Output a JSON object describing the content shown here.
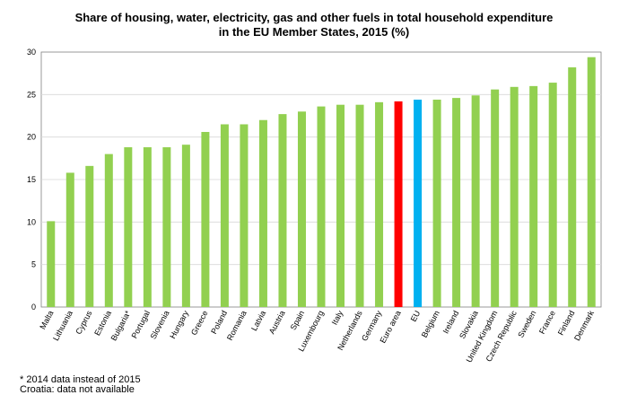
{
  "chart_data": {
    "type": "bar",
    "title_lines": [
      "Share of housing, water, electricity, gas and other fuels in total household expenditure",
      "in the EU Member States, 2015 (%)"
    ],
    "xlabel": "",
    "ylabel": "",
    "ylim": [
      0,
      30
    ],
    "yticks": [
      0,
      5,
      10,
      15,
      20,
      25,
      30
    ],
    "grid": true,
    "legend": "none",
    "categories": [
      "Malta",
      "Lithuania",
      "Cyprus",
      "Estonia",
      "Bulgaria*",
      "Portugal",
      "Slovenia",
      "Hungary",
      "Greece",
      "Poland",
      "Romania",
      "Latvia",
      "Austria",
      "Spain",
      "Luxembourg",
      "Italy",
      "Netherlands",
      "Germany",
      "Euro area",
      "EU",
      "Belgium",
      "Ireland",
      "Slovakia",
      "United Kingdom",
      "Czech Republic",
      "Sweden",
      "France",
      "Finland",
      "Denmark"
    ],
    "values": [
      10.1,
      15.8,
      16.6,
      18.0,
      18.8,
      18.8,
      18.8,
      19.1,
      20.6,
      21.5,
      21.5,
      22.0,
      22.7,
      23.0,
      23.6,
      23.8,
      23.8,
      24.1,
      24.2,
      24.4,
      24.4,
      24.6,
      24.9,
      25.6,
      25.9,
      26.0,
      26.4,
      28.2,
      29.4
    ],
    "colors": {
      "default": "#92d050",
      "highlight": {
        "Euro area": "#ff0000",
        "EU": "#00b0f0"
      },
      "grid": "#d9d9d9",
      "axis": "#808080"
    }
  },
  "footnotes": [
    "* 2014 data instead of 2015",
    "Croatia: data not available"
  ]
}
